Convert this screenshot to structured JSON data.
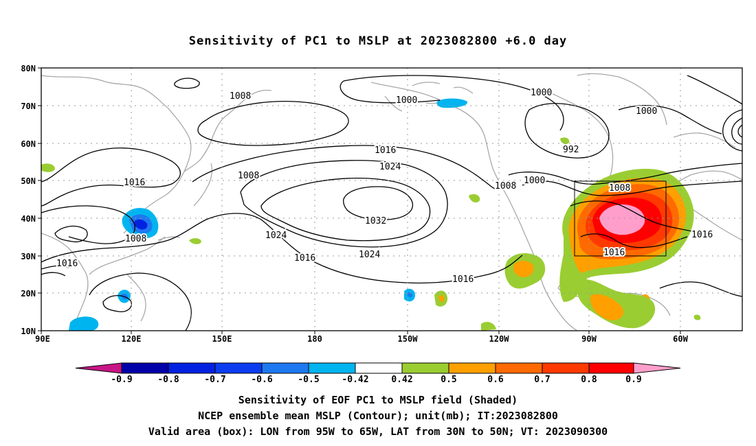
{
  "title": "Sensitivity of PC1 to MSLP at 2023082800 +6.0 day",
  "map": {
    "lat_ticks": [
      "80N",
      "70N",
      "60N",
      "50N",
      "40N",
      "30N",
      "20N",
      "10N"
    ],
    "lon_ticks": [
      "90E",
      "120E",
      "150E",
      "180",
      "150W",
      "120W",
      "90W",
      "60W"
    ],
    "lon_range": [
      "90E",
      "40W"
    ],
    "lat_range": [
      "10N",
      "80N"
    ],
    "grid": "dotted",
    "valid_box": {
      "lon": [
        "95W",
        "65W"
      ],
      "lat": [
        "30N",
        "50N"
      ]
    },
    "contour_labels": [
      "1008",
      "1000",
      "1000",
      "1000",
      "1016",
      "992",
      "1024",
      "1016",
      "1008",
      "1008",
      "1000",
      "1008",
      "1032",
      "1024",
      "1016",
      "1008",
      "1024",
      "1016",
      "1016",
      "1016",
      "1016"
    ]
  },
  "colorbar": {
    "labels": [
      "-0.9",
      "-0.8",
      "-0.7",
      "-0.6",
      "-0.5",
      "-0.42",
      "0.42",
      "0.5",
      "0.6",
      "0.7",
      "0.8",
      "0.9"
    ],
    "colors": [
      "#c71585",
      "#0000a8",
      "#0022e0",
      "#0a3cf0",
      "#1e78f0",
      "#00b4f0",
      "#ffffff",
      "#9acd32",
      "#ffa000",
      "#ff6a00",
      "#ff3a00",
      "#ff0000",
      "#ff9ecb"
    ]
  },
  "captions": {
    "line1": "Sensitivity of EOF PC1 to MSLP field (Shaded)",
    "line2": "NCEP ensemble mean MSLP (Contour); unit(mb); IT:2023082800",
    "line3": "Valid area (box): LON from 95W to 65W, LAT from 30N to 50N; VT: 2023090300"
  }
}
